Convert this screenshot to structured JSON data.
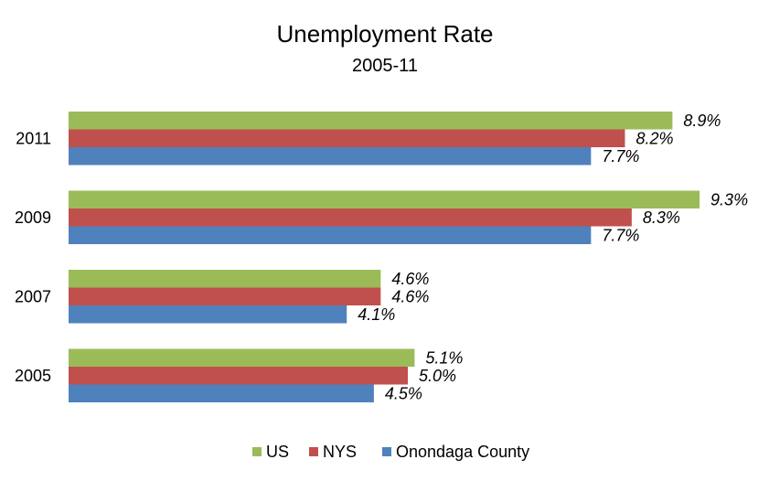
{
  "chart_data": {
    "type": "bar",
    "orientation": "horizontal",
    "title": "Unemployment Rate",
    "subtitle": "2005-11",
    "categories": [
      "2011",
      "2009",
      "2007",
      "2005"
    ],
    "series": [
      {
        "name": "US",
        "color": "#9BBB59",
        "values": [
          8.9,
          9.3,
          4.6,
          5.1
        ],
        "labels": [
          "8.9%",
          "9.3%",
          "4.6%",
          "5.1%"
        ]
      },
      {
        "name": "NYS",
        "color": "#C0504D",
        "values": [
          8.2,
          8.3,
          4.6,
          5.0
        ],
        "labels": [
          "8.2%",
          "8.3%",
          "4.6%",
          "5.0%"
        ]
      },
      {
        "name": "Onondaga County",
        "color": "#4F81BD",
        "values": [
          7.7,
          7.7,
          4.1,
          4.5
        ],
        "labels": [
          "7.7%",
          "7.7%",
          "4.1%",
          "4.5%"
        ]
      }
    ],
    "xlim": [
      0,
      10
    ],
    "grid": false,
    "legend_position": "bottom"
  }
}
